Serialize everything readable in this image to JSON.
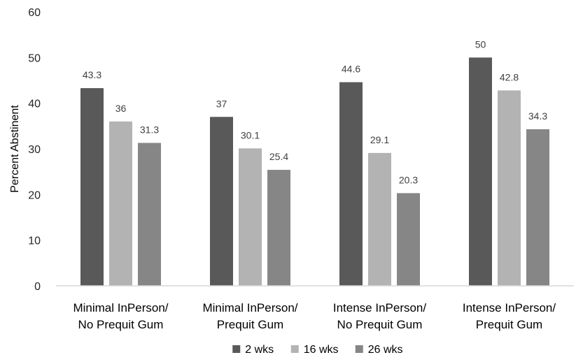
{
  "chart_data": {
    "type": "bar",
    "title": "",
    "xlabel": "",
    "ylabel": "Percent Abstinent",
    "ylim": [
      0,
      60
    ],
    "yticks": [
      0,
      10,
      20,
      30,
      40,
      50,
      60
    ],
    "grid": false,
    "legend_position": "bottom",
    "categories": [
      [
        "Minimal InPerson/",
        "No Prequit Gum"
      ],
      [
        "Minimal InPerson/",
        "Prequit Gum"
      ],
      [
        "Intense InPerson/",
        "No Prequit Gum"
      ],
      [
        "Intense InPerson/",
        "Prequit Gum"
      ]
    ],
    "series": [
      {
        "name": "2 wks",
        "color": "#595959",
        "values": [
          43.3,
          37,
          44.6,
          50
        ]
      },
      {
        "name": "16 wks",
        "color": "#b3b3b3",
        "values": [
          36,
          30.1,
          29.1,
          42.8
        ]
      },
      {
        "name": "26 wks",
        "color": "#868686",
        "values": [
          31.3,
          25.4,
          20.3,
          34.3
        ]
      }
    ]
  }
}
